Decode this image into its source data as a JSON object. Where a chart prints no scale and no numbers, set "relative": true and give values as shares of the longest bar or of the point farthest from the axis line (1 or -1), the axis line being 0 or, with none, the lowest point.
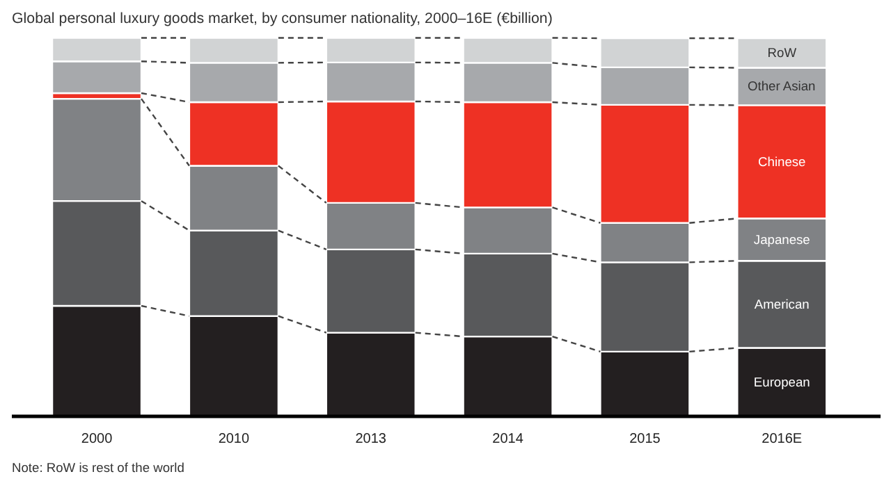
{
  "chart_data": {
    "type": "bar",
    "title": "Global personal luxury goods market, by consumer nationality, 2000–16E (€billion)",
    "stacked": true,
    "relative": true,
    "categories": [
      "2000",
      "2010",
      "2013",
      "2014",
      "2015",
      "2016E"
    ],
    "series": [
      {
        "name": "European",
        "color": "#231f20",
        "values": [
          0.292,
          0.265,
          0.221,
          0.211,
          0.171,
          0.181
        ]
      },
      {
        "name": "American",
        "color": "#58595b",
        "values": [
          0.277,
          0.226,
          0.22,
          0.219,
          0.236,
          0.23
        ]
      },
      {
        "name": "Japanese",
        "color": "#808285",
        "values": [
          0.27,
          0.171,
          0.123,
          0.122,
          0.104,
          0.112
        ]
      },
      {
        "name": "Chinese",
        "color": "#ee3124",
        "values": [
          0.015,
          0.168,
          0.268,
          0.278,
          0.312,
          0.299
        ]
      },
      {
        "name": "Other Asian",
        "color": "#a7a9ac",
        "values": [
          0.084,
          0.104,
          0.103,
          0.104,
          0.099,
          0.099
        ]
      },
      {
        "name": "RoW",
        "color": "#d1d3d4",
        "values": [
          0.062,
          0.066,
          0.065,
          0.066,
          0.077,
          0.078
        ]
      }
    ],
    "grid": false,
    "annotations": [
      "Note: RoW is rest of the world"
    ]
  }
}
